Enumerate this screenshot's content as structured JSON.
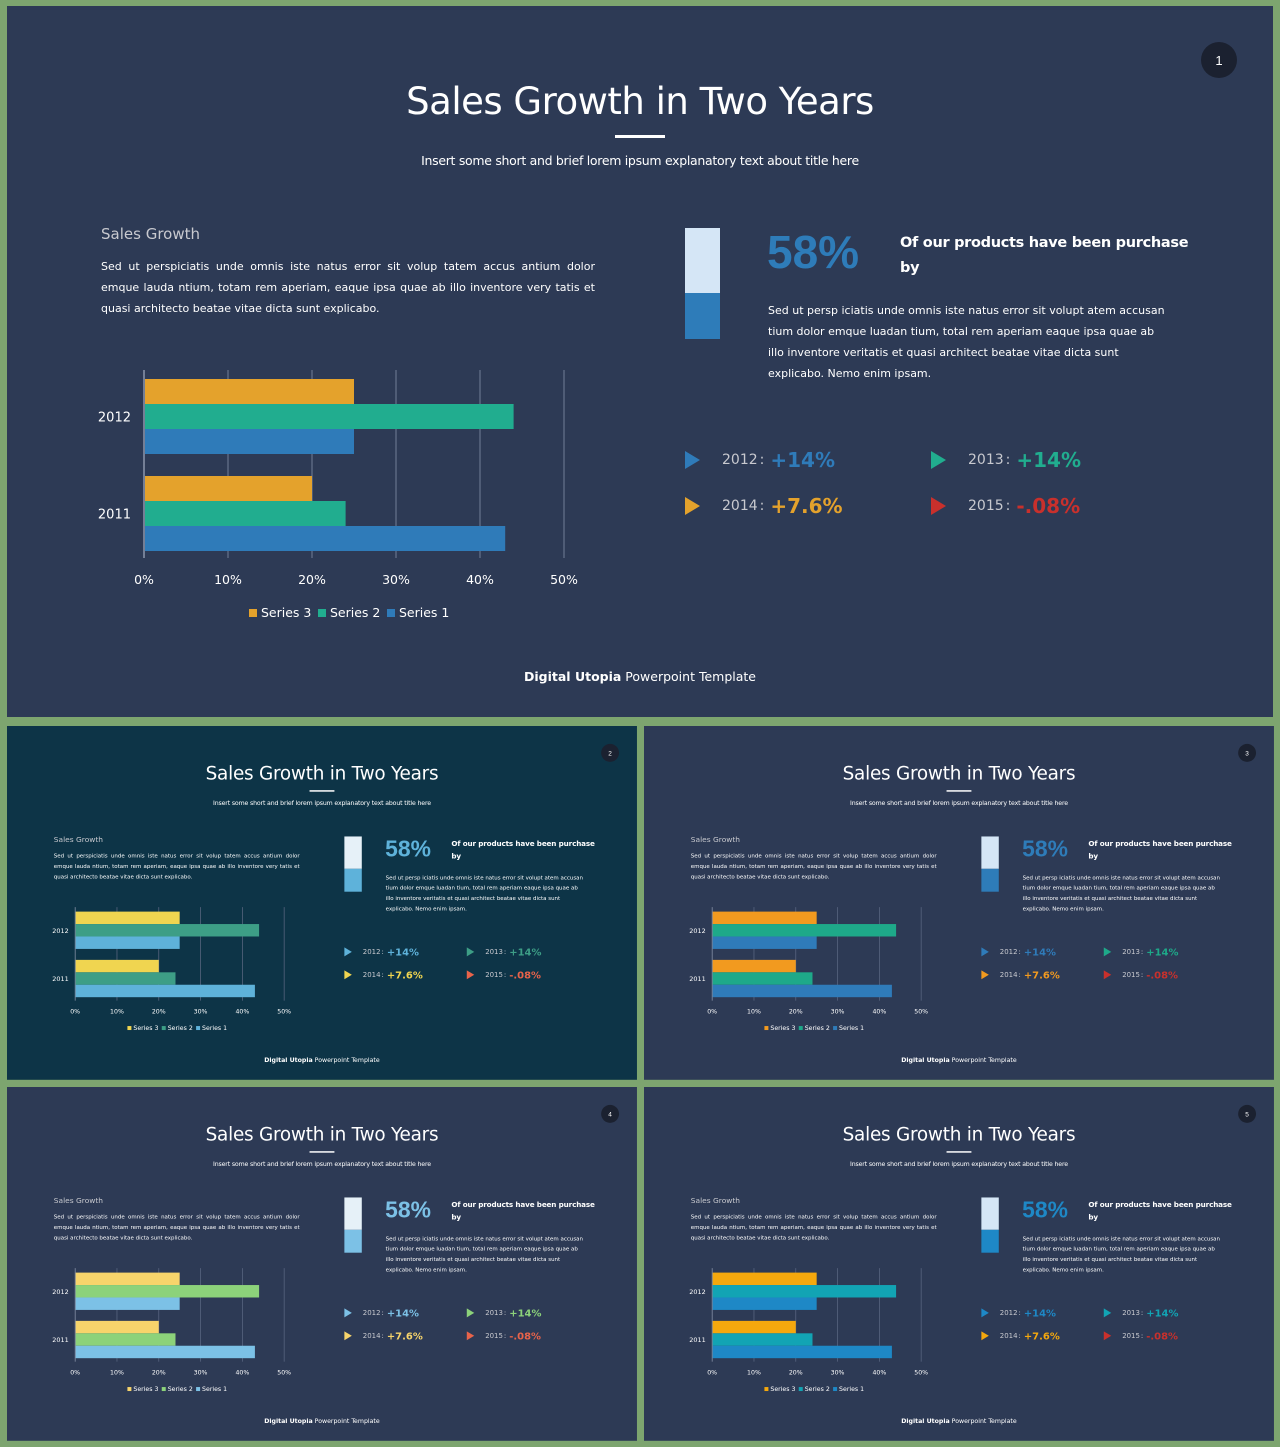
{
  "slides": [
    {
      "page_number": "1",
      "background": "#2d3a55",
      "title": "Sales Growth in Two Years",
      "subtitle": "Insert some short and brief lorem ipsum explanatory text about title here",
      "section_heading": "Sales Growth",
      "section_body": "Sed ut perspiciatis unde omnis iste natus error sit volup tatem accus antium dolor emque lauda ntium, totam rem aperiam, eaque ipsa quae ab illo inventore very tatis et quasi architecto beatae vitae dicta sunt explicabo.",
      "big_percent": "58%",
      "big_percent_caption": "Of our products have been purchase by",
      "big_percent_body": "Sed ut persp iciatis unde omnis iste natus error sit volupt atem accusan tium dolor emque luadan tium, total rem aperiam eaque ipsa quae ab illo inventore veritatis et quasi architect beatae vitae dicta sunt explicabo. Nemo enim ipsam.",
      "gauge_colors": {
        "light": "#d5e6f6",
        "dark": "#2e7cb9"
      },
      "colors": {
        "s3": "#e4a22c",
        "s2": "#21ad8f",
        "s1": "#2f7bb9",
        "pct": "#2e7cb9",
        "down": "#c9302c"
      },
      "stats": [
        {
          "year": "2012",
          "value": "+14%",
          "color": "#2f7bb9"
        },
        {
          "year": "2013",
          "value": "+14%",
          "color": "#21ad8f"
        },
        {
          "year": "2014",
          "value": "+7.6%",
          "color": "#e4a22c"
        },
        {
          "year": "2015",
          "value": "-.08%",
          "color": "#c9302c"
        }
      ],
      "footer": {
        "brand": "Digital Utopia",
        "rest": " Powerpoint Template"
      },
      "chart_data": {
        "type": "bar",
        "orientation": "horizontal",
        "categories": [
          "2011",
          "2012"
        ],
        "series": [
          {
            "name": "Series 1",
            "values": [
              43,
              25
            ],
            "color": "#2f7bb9"
          },
          {
            "name": "Series 2",
            "values": [
              24,
              44
            ],
            "color": "#21ad8f"
          },
          {
            "name": "Series 3",
            "values": [
              20,
              25
            ],
            "color": "#e4a22c"
          }
        ],
        "xlim": [
          0,
          50
        ],
        "x_ticks": [
          "0%",
          "10%",
          "20%",
          "30%",
          "40%",
          "50%"
        ],
        "legend": [
          "Series 3",
          "Series 2",
          "Series 1"
        ],
        "legend_position": "bottom",
        "grid": true
      }
    },
    {
      "page_number": "2",
      "background": "#0d3447",
      "title": "Sales Growth in Two Years",
      "subtitle": "Insert some short and brief lorem ipsum explanatory text about title here",
      "section_heading": "Sales Growth",
      "section_body": "Sed ut perspiciatis unde omnis iste natus error sit volup tatem accus antium dolor emque lauda ntium, totam rem aperiam, eaque ipsa quae ab illo inventore very tatis et quasi architecto beatae vitae dicta sunt explicabo.",
      "big_percent": "58%",
      "big_percent_caption": "Of our products have been purchase by",
      "big_percent_body": "Sed ut persp iciatis unde omnis iste natus error sit volupt atem accusan tium dolor emque luadan tium, total rem aperiam eaque ipsa quae ab illo inventore veritatis et quasi architect beatae vitae dicta sunt explicabo. Nemo enim ipsam.",
      "gauge_colors": {
        "light": "#e6f1f8",
        "dark": "#5eb2da"
      },
      "colors": {
        "s3": "#f0d550",
        "s2": "#3d9e86",
        "s1": "#5eb2da",
        "pct": "#5eb2da",
        "down": "#e8634a"
      },
      "stats": [
        {
          "year": "2012",
          "value": "+14%",
          "color": "#5eb2da"
        },
        {
          "year": "2013",
          "value": "+14%",
          "color": "#3d9e86"
        },
        {
          "year": "2014",
          "value": "+7.6%",
          "color": "#f0d550"
        },
        {
          "year": "2015",
          "value": "-.08%",
          "color": "#e8634a"
        }
      ],
      "footer": {
        "brand": "Digital Utopia",
        "rest": " Powerpoint Template"
      },
      "chart_data": {
        "type": "bar",
        "orientation": "horizontal",
        "categories": [
          "2011",
          "2012"
        ],
        "series": [
          {
            "name": "Series 1",
            "values": [
              43,
              25
            ],
            "color": "#5eb2da"
          },
          {
            "name": "Series 2",
            "values": [
              24,
              44
            ],
            "color": "#3d9e86"
          },
          {
            "name": "Series 3",
            "values": [
              20,
              25
            ],
            "color": "#f0d550"
          }
        ],
        "xlim": [
          0,
          50
        ],
        "x_ticks": [
          "0%",
          "10%",
          "20%",
          "30%",
          "40%",
          "50%"
        ],
        "legend": [
          "Series 3",
          "Series 2",
          "Series 1"
        ],
        "legend_position": "bottom",
        "grid": true
      }
    },
    {
      "page_number": "3",
      "background": "#2d3a55",
      "title": "Sales Growth in Two Years",
      "subtitle": "Insert some short and brief lorem ipsum explanatory text about title here",
      "section_heading": "Sales Growth",
      "section_body": "Sed ut perspiciatis unde omnis iste natus error sit volup tatem accus antium dolor emque lauda ntium, totam rem aperiam, eaque ipsa quae ab illo inventore very tatis et quasi architecto beatae vitae dicta sunt explicabo.",
      "big_percent": "58%",
      "big_percent_caption": "Of our products have been purchase by",
      "big_percent_body": "Sed ut persp iciatis unde omnis iste natus error sit volupt atem accusan tium dolor emque luadan tium, total rem aperiam eaque ipsa quae ab illo inventore veritatis et quasi architect beatae vitae dicta sunt explicabo. Nemo enim ipsam.",
      "gauge_colors": {
        "light": "#d5e6f6",
        "dark": "#2e7cb9"
      },
      "colors": {
        "s3": "#f29a1f",
        "s2": "#1ea989",
        "s1": "#2f7bb9",
        "pct": "#2e7cb9",
        "down": "#c9302c"
      },
      "stats": [
        {
          "year": "2012",
          "value": "+14%",
          "color": "#2f7bb9"
        },
        {
          "year": "2013",
          "value": "+14%",
          "color": "#1ea989"
        },
        {
          "year": "2014",
          "value": "+7.6%",
          "color": "#f29a1f"
        },
        {
          "year": "2015",
          "value": "-.08%",
          "color": "#c9302c"
        }
      ],
      "footer": {
        "brand": "Digital Utopia",
        "rest": " Powerpoint Template"
      },
      "chart_data": {
        "type": "bar",
        "orientation": "horizontal",
        "categories": [
          "2011",
          "2012"
        ],
        "series": [
          {
            "name": "Series 1",
            "values": [
              43,
              25
            ],
            "color": "#2f7bb9"
          },
          {
            "name": "Series 2",
            "values": [
              24,
              44
            ],
            "color": "#1ea989"
          },
          {
            "name": "Series 3",
            "values": [
              20,
              25
            ],
            "color": "#f29a1f"
          }
        ],
        "xlim": [
          0,
          50
        ],
        "x_ticks": [
          "0%",
          "10%",
          "20%",
          "30%",
          "40%",
          "50%"
        ],
        "legend": [
          "Series 3",
          "Series 2",
          "Series 1"
        ],
        "legend_position": "bottom",
        "grid": true
      }
    },
    {
      "page_number": "4",
      "background": "#2d3a55",
      "title": "Sales Growth in Two Years",
      "subtitle": "Insert some short and brief lorem ipsum explanatory text about title here",
      "section_heading": "Sales Growth",
      "section_body": "Sed ut perspiciatis unde omnis iste natus error sit volup tatem accus antium dolor emque lauda ntium, totam rem aperiam, eaque ipsa quae ab illo inventore very tatis et quasi architecto beatae vitae dicta sunt explicabo.",
      "big_percent": "58%",
      "big_percent_caption": "Of our products have been purchase by",
      "big_percent_body": "Sed ut persp iciatis unde omnis iste natus error sit volupt atem accusan tium dolor emque luadan tium, total rem aperiam eaque ipsa quae ab illo inventore veritatis et quasi architect beatae vitae dicta sunt explicabo. Nemo enim ipsam.",
      "gauge_colors": {
        "light": "#e6f1f8",
        "dark": "#7cc1e6"
      },
      "colors": {
        "s3": "#f7d46b",
        "s2": "#8cd27a",
        "s1": "#7cc1e6",
        "pct": "#7cc1e6",
        "down": "#e8634a"
      },
      "stats": [
        {
          "year": "2012",
          "value": "+14%",
          "color": "#7cc1e6"
        },
        {
          "year": "2013",
          "value": "+14%",
          "color": "#8cd27a"
        },
        {
          "year": "2014",
          "value": "+7.6%",
          "color": "#f7d46b"
        },
        {
          "year": "2015",
          "value": "-.08%",
          "color": "#e8634a"
        }
      ],
      "footer": {
        "brand": "Digital Utopia",
        "rest": " Powerpoint Template"
      },
      "chart_data": {
        "type": "bar",
        "orientation": "horizontal",
        "categories": [
          "2011",
          "2012"
        ],
        "series": [
          {
            "name": "Series 1",
            "values": [
              43,
              25
            ],
            "color": "#7cc1e6"
          },
          {
            "name": "Series 2",
            "values": [
              24,
              44
            ],
            "color": "#8cd27a"
          },
          {
            "name": "Series 3",
            "values": [
              20,
              25
            ],
            "color": "#f7d46b"
          }
        ],
        "xlim": [
          0,
          50
        ],
        "x_ticks": [
          "0%",
          "10%",
          "20%",
          "30%",
          "40%",
          "50%"
        ],
        "legend": [
          "Series 3",
          "Series 2",
          "Series 1"
        ],
        "legend_position": "bottom",
        "grid": true
      }
    },
    {
      "page_number": "5",
      "background": "#2d3a55",
      "title": "Sales Growth in Two Years",
      "subtitle": "Insert some short and brief lorem ipsum explanatory text about title here",
      "section_heading": "Sales Growth",
      "section_body": "Sed ut perspiciatis unde omnis iste natus error sit volup tatem accus antium dolor emque lauda ntium, totam rem aperiam, eaque ipsa quae ab illo inventore very tatis et quasi architecto beatae vitae dicta sunt explicabo.",
      "big_percent": "58%",
      "big_percent_caption": "Of our products have been purchase by",
      "big_percent_body": "Sed ut persp iciatis unde omnis iste natus error sit volupt atem accusan tium dolor emque luadan tium, total rem aperiam eaque ipsa quae ab illo inventore veritatis et quasi architect beatae vitae dicta sunt explicabo. Nemo enim ipsam.",
      "gauge_colors": {
        "light": "#d5e6f6",
        "dark": "#1e88c6"
      },
      "colors": {
        "s3": "#f5a80d",
        "s2": "#12a4b4",
        "s1": "#1e88c6",
        "pct": "#1e88c6",
        "down": "#c9302c"
      },
      "stats": [
        {
          "year": "2012",
          "value": "+14%",
          "color": "#1e88c6"
        },
        {
          "year": "2013",
          "value": "+14%",
          "color": "#12a4b4"
        },
        {
          "year": "2014",
          "value": "+7.6%",
          "color": "#f5a80d"
        },
        {
          "year": "2015",
          "value": "-.08%",
          "color": "#c9302c"
        }
      ],
      "footer": {
        "brand": "Digital Utopia",
        "rest": " Powerpoint Template"
      },
      "chart_data": {
        "type": "bar",
        "orientation": "horizontal",
        "categories": [
          "2011",
          "2012"
        ],
        "series": [
          {
            "name": "Series 1",
            "values": [
              43,
              25
            ],
            "color": "#1e88c6"
          },
          {
            "name": "Series 2",
            "values": [
              24,
              44
            ],
            "color": "#12a4b4"
          },
          {
            "name": "Series 3",
            "values": [
              20,
              25
            ],
            "color": "#f5a80d"
          }
        ],
        "xlim": [
          0,
          50
        ],
        "x_ticks": [
          "0%",
          "10%",
          "20%",
          "30%",
          "40%",
          "50%"
        ],
        "legend": [
          "Series 3",
          "Series 2",
          "Series 1"
        ],
        "legend_position": "bottom",
        "grid": true
      }
    }
  ]
}
